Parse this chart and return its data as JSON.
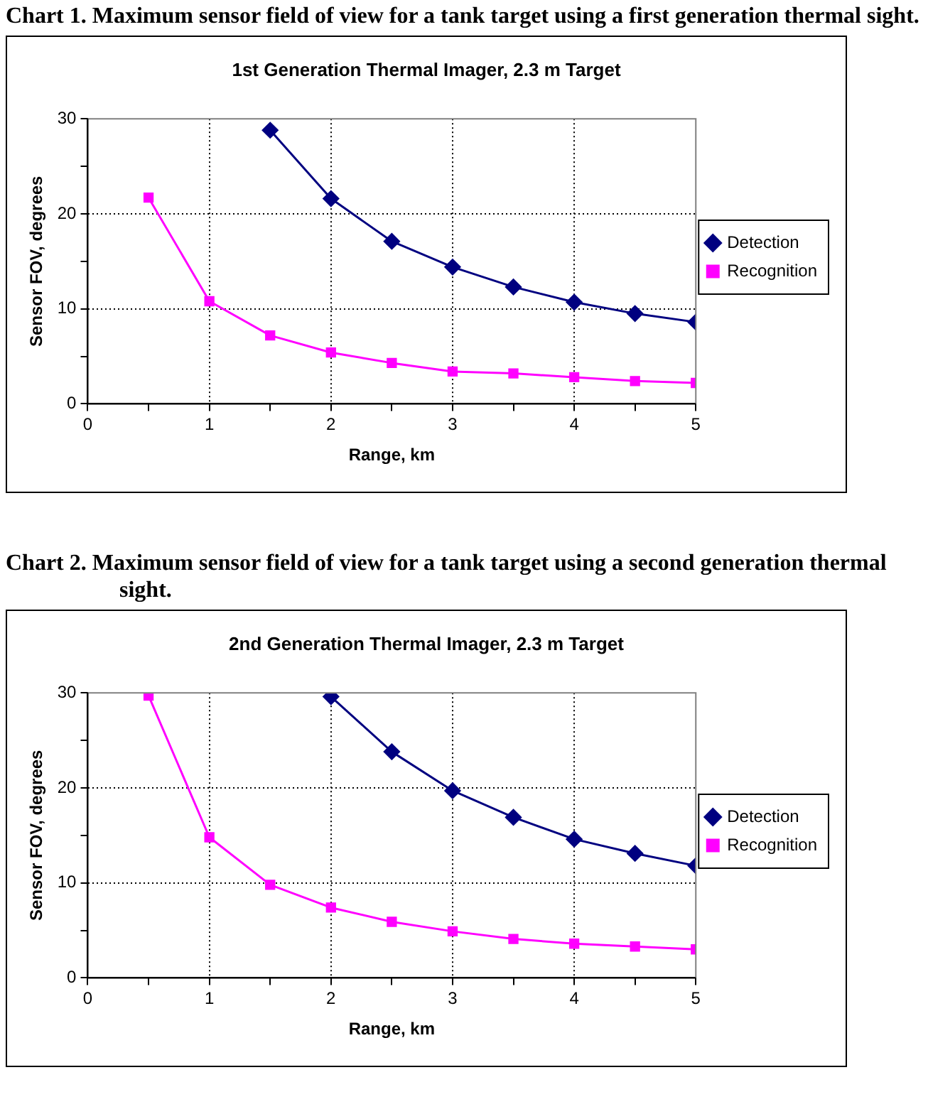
{
  "chart_data": [
    {
      "type": "line",
      "title": "1st Generation Thermal Imager, 2.3 m Target",
      "xlabel": "Range, km",
      "ylabel": "Sensor FOV, degrees",
      "annotations": [
        "Chart 1.  Maximum sensor field of view for a tank target using a first generation thermal sight."
      ],
      "xlim": [
        0,
        5
      ],
      "xticks": [
        0,
        {
          "value": 0.5,
          "label": null
        },
        1,
        {
          "value": 1.5,
          "label": null
        },
        2,
        {
          "value": 2.5,
          "label": null
        },
        3,
        {
          "value": 3.5,
          "label": null
        },
        4,
        {
          "value": 4.5,
          "label": null
        },
        5
      ],
      "ylim": [
        0,
        30
      ],
      "yticks": [
        0,
        {
          "value": 5,
          "label": null
        },
        10,
        {
          "value": 15,
          "label": null
        },
        20,
        {
          "value": 25,
          "label": null
        },
        30
      ],
      "grid": true,
      "legend": "right",
      "series": [
        {
          "name": "Detection",
          "color": "#000080",
          "marker": "diamond",
          "x": [
            1.5,
            2,
            2.5,
            3,
            3.5,
            4,
            4.5,
            5
          ],
          "values": [
            28.8,
            21.6,
            17.1,
            14.4,
            12.3,
            10.7,
            9.5,
            8.6
          ]
        },
        {
          "name": "Recognition",
          "color": "#ff00ff",
          "marker": "square",
          "x": [
            0.5,
            1,
            1.5,
            2,
            2.5,
            3,
            3.5,
            4,
            4.5,
            5
          ],
          "values": [
            21.7,
            10.8,
            7.2,
            5.4,
            4.3,
            3.4,
            3.2,
            2.8,
            2.4,
            2.2
          ]
        }
      ]
    },
    {
      "type": "line",
      "title": "2nd Generation Thermal Imager, 2.3 m Target",
      "xlabel": "Range, km",
      "ylabel": "Sensor FOV, degrees",
      "annotations": [
        "Chart 2.  Maximum sensor field of view for a tank target using a second generation thermal sight."
      ],
      "xlim": [
        0,
        5
      ],
      "xticks": [
        0,
        {
          "value": 0.5,
          "label": null
        },
        1,
        {
          "value": 1.5,
          "label": null
        },
        2,
        {
          "value": 2.5,
          "label": null
        },
        3,
        {
          "value": 3.5,
          "label": null
        },
        4,
        {
          "value": 4.5,
          "label": null
        },
        5
      ],
      "ylim": [
        0,
        30
      ],
      "yticks": [
        0,
        {
          "value": 5,
          "label": null
        },
        10,
        {
          "value": 15,
          "label": null
        },
        20,
        {
          "value": 25,
          "label": null
        },
        30
      ],
      "grid": true,
      "legend": "right",
      "series": [
        {
          "name": "Detection",
          "color": "#000080",
          "marker": "diamond",
          "x": [
            2,
            2.5,
            3,
            3.5,
            4,
            4.5,
            5
          ],
          "values": [
            29.6,
            23.8,
            19.7,
            16.9,
            14.6,
            13.1,
            11.8
          ]
        },
        {
          "name": "Recognition",
          "color": "#ff00ff",
          "marker": "square",
          "x": [
            0.5,
            1,
            1.5,
            2,
            2.5,
            3,
            3.5,
            4,
            4.5,
            5
          ],
          "values": [
            29.7,
            14.8,
            9.8,
            7.4,
            5.9,
            4.9,
            4.1,
            3.6,
            3.3,
            3.0
          ]
        }
      ]
    }
  ]
}
